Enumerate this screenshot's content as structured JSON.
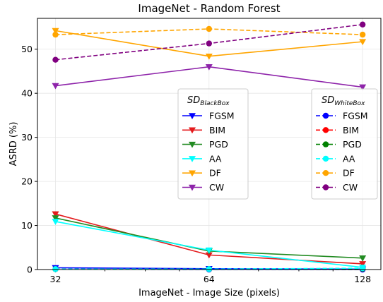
{
  "chart_data": {
    "type": "line",
    "title": "ImageNet - Random Forest",
    "xlabel": "ImageNet - Image Size (pixels)",
    "ylabel": "ASRD (%)",
    "x": [
      32,
      64,
      128
    ],
    "x_scale": "log2",
    "xlim": [
      29.5,
      139
    ],
    "ylim": [
      0,
      57
    ],
    "yticks": [
      0,
      10,
      20,
      30,
      40,
      50
    ],
    "xticks": [
      32,
      64,
      128
    ],
    "grid": true,
    "legend_blackbox": {
      "title_main": "SD",
      "title_sub": "BlackBox",
      "placement": "center"
    },
    "legend_whitebox": {
      "title_main": "SD",
      "title_sub": "WhiteBox",
      "placement": "center-right"
    },
    "series": [
      {
        "name": "FGSM",
        "group": "blackbox",
        "color": "#0000ff",
        "style": "solid",
        "marker": "triangle-down",
        "values": [
          0.4,
          0.2,
          0.1
        ]
      },
      {
        "name": "BIM",
        "group": "blackbox",
        "color": "#e41a1c",
        "style": "solid",
        "marker": "triangle-down",
        "values": [
          12.6,
          3.3,
          1.3
        ]
      },
      {
        "name": "PGD",
        "group": "blackbox",
        "color": "#228b22",
        "style": "solid",
        "marker": "triangle-down",
        "values": [
          11.7,
          4.2,
          2.6
        ]
      },
      {
        "name": "AA",
        "group": "blackbox",
        "color": "#00ffff",
        "style": "solid",
        "marker": "triangle-down",
        "values": [
          10.9,
          4.4,
          0.5
        ]
      },
      {
        "name": "DF",
        "group": "blackbox",
        "color": "#ffa500",
        "style": "solid",
        "marker": "triangle-down",
        "values": [
          54.2,
          48.4,
          51.7
        ]
      },
      {
        "name": "CW",
        "group": "blackbox",
        "color": "#8e24aa",
        "style": "solid",
        "marker": "triangle-down",
        "values": [
          41.7,
          46.0,
          41.4
        ]
      },
      {
        "name": "FGSM",
        "group": "whitebox",
        "color": "#0000ff",
        "style": "dashed",
        "marker": "circle",
        "values": [
          0.1,
          0.0,
          0.0
        ]
      },
      {
        "name": "BIM",
        "group": "whitebox",
        "color": "#ff0000",
        "style": "dashed",
        "marker": "circle",
        "values": [
          0.1,
          0.1,
          0.2
        ]
      },
      {
        "name": "PGD",
        "group": "whitebox",
        "color": "#008000",
        "style": "dashed",
        "marker": "circle",
        "values": [
          0.1,
          0.1,
          0.2
        ]
      },
      {
        "name": "AA",
        "group": "whitebox",
        "color": "#00ffff",
        "style": "dashed",
        "marker": "circle",
        "values": [
          0.1,
          0.1,
          0.3
        ]
      },
      {
        "name": "DF",
        "group": "whitebox",
        "color": "#ffa500",
        "style": "dashed",
        "marker": "circle",
        "values": [
          53.3,
          54.6,
          53.3
        ]
      },
      {
        "name": "CW",
        "group": "whitebox",
        "color": "#800080",
        "style": "dashed",
        "marker": "circle",
        "values": [
          47.6,
          51.3,
          55.6
        ]
      }
    ]
  }
}
